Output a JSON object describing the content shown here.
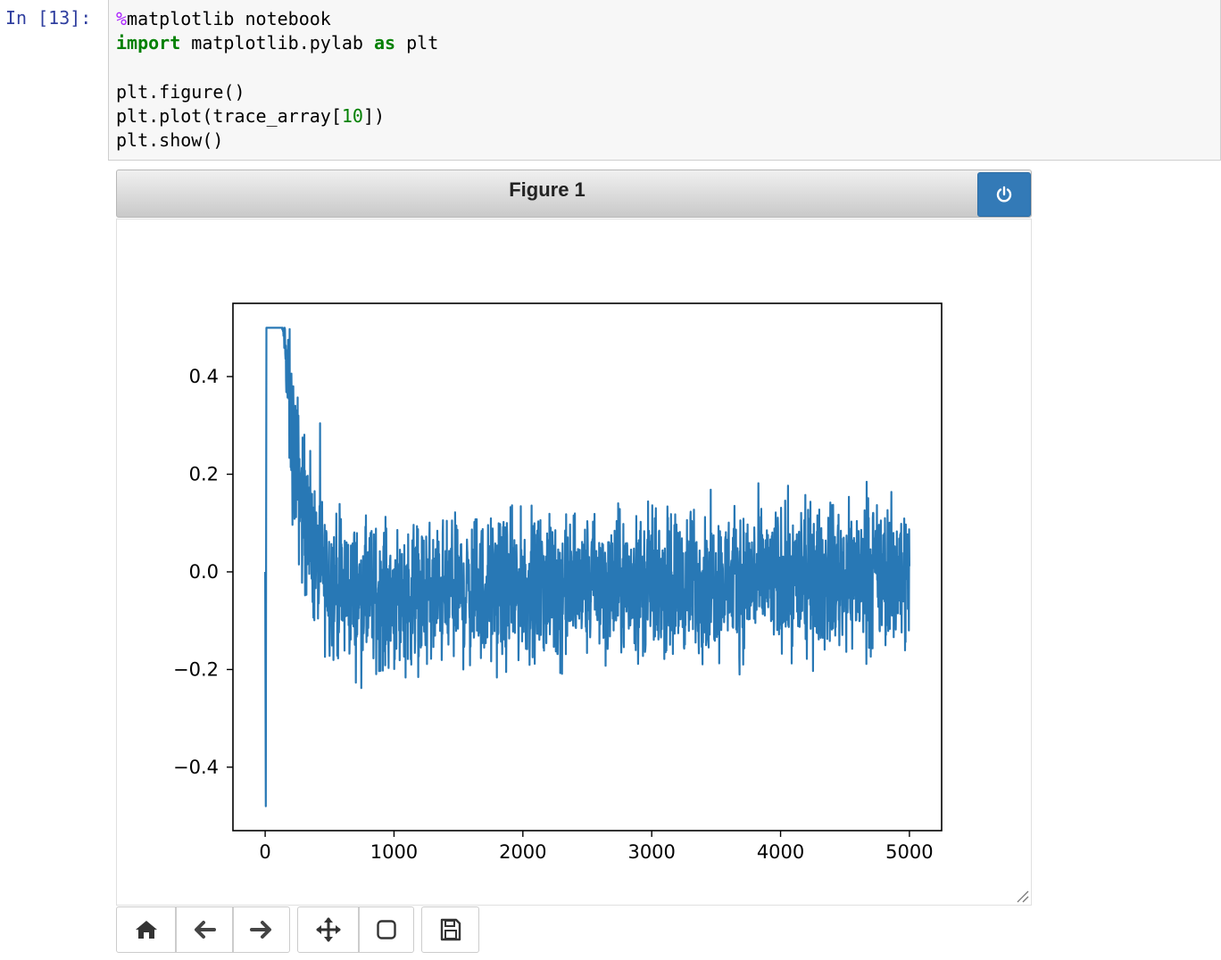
{
  "cell": {
    "prompt": "In [13]:",
    "lines": {
      "l1_magic": "%",
      "l1_rest": "matplotlib notebook",
      "l2_kw1": "import",
      "l2_mid": " matplotlib.pylab ",
      "l2_kw2": "as",
      "l2_end": " plt",
      "l4": "plt.figure()",
      "l5_start": "plt.plot(trace_array[",
      "l5_num": "10",
      "l5_end": "])",
      "l6": "plt.show()"
    }
  },
  "figure": {
    "title": "Figure 1",
    "power_icon": "power-icon"
  },
  "toolbar": {
    "icons": [
      "home-icon",
      "back-arrow-icon",
      "forward-arrow-icon",
      "pan-icon",
      "zoom-rect-icon",
      "save-icon"
    ]
  },
  "chart_data": {
    "type": "line",
    "title": "",
    "xlabel": "",
    "ylabel": "",
    "xlim": [
      -250,
      5250
    ],
    "ylim": [
      -0.53,
      0.55
    ],
    "xticks": [
      0,
      1000,
      2000,
      3000,
      4000,
      5000
    ],
    "yticks": [
      -0.4,
      -0.2,
      0.0,
      0.2,
      0.4
    ],
    "ytick_labels": [
      "−0.4",
      "−0.2",
      "0.0",
      "0.2",
      "0.4"
    ],
    "series": [
      {
        "color": "#2878b5",
        "x": [
          0,
          5,
          8,
          10,
          15,
          30,
          60,
          100,
          130,
          150,
          170,
          200,
          250,
          300,
          350,
          400,
          500,
          600,
          700,
          800,
          900,
          1000,
          1200,
          1400,
          1600,
          1800,
          2000,
          2500,
          3000,
          3500,
          4000,
          4500,
          5000
        ],
        "y": [
          0.0,
          -0.48,
          0.11,
          0.5,
          0.5,
          0.5,
          0.5,
          0.5,
          0.5,
          0.48,
          0.4,
          0.3,
          0.2,
          0.12,
          0.06,
          0.02,
          -0.02,
          -0.04,
          -0.045,
          -0.05,
          -0.05,
          -0.05,
          -0.045,
          -0.045,
          -0.04,
          -0.04,
          -0.035,
          -0.03,
          -0.025,
          -0.02,
          -0.015,
          -0.01,
          -0.005
        ],
        "noise_amplitude": [
          0,
          0,
          0,
          0,
          0,
          0,
          0,
          0,
          0,
          0.02,
          0.06,
          0.08,
          0.08,
          0.08,
          0.07,
          0.07,
          0.07,
          0.07,
          0.07,
          0.07,
          0.07,
          0.07,
          0.07,
          0.07,
          0.07,
          0.07,
          0.07,
          0.07,
          0.07,
          0.07,
          0.07,
          0.07,
          0.07
        ]
      }
    ]
  }
}
